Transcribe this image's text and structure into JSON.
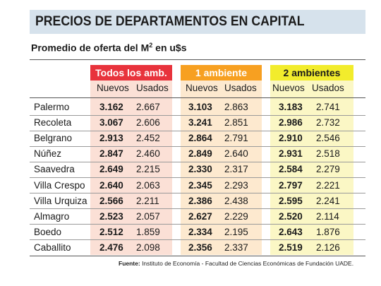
{
  "title": "PRECIOS DE DEPARTAMENTOS EN CAPITAL",
  "subtitle": {
    "text": "Promedio de oferta del M",
    "sup": "2",
    "suffix": " en u$s"
  },
  "groups": [
    {
      "label": "Todos los amb.",
      "color": "#e8333c"
    },
    {
      "label": "1 ambiente",
      "color": "#f7a021"
    },
    {
      "label": "2 ambientes",
      "color": "#f2ec2c"
    }
  ],
  "subheaders": {
    "nuevos": "Nuevos",
    "usados": "Usados"
  },
  "rows": [
    {
      "barrio": "Palermo",
      "values": [
        "3.162",
        "2.667",
        "3.103",
        "2.863",
        "3.183",
        "2.741"
      ]
    },
    {
      "barrio": "Recoleta",
      "values": [
        "3.067",
        "2.606",
        "3.241",
        "2.851",
        "2.986",
        "2.732"
      ]
    },
    {
      "barrio": "Belgrano",
      "values": [
        "2.913",
        "2.452",
        "2.864",
        "2.791",
        "2.910",
        "2.546"
      ]
    },
    {
      "barrio": "Núñez",
      "values": [
        "2.847",
        "2.460",
        "2.849",
        "2.640",
        "2.931",
        "2.518"
      ]
    },
    {
      "barrio": "Saavedra",
      "values": [
        "2.649",
        "2.215",
        "2.330",
        "2.317",
        "2.584",
        "2.279"
      ]
    },
    {
      "barrio": "Villa Crespo",
      "values": [
        "2.640",
        "2.063",
        "2.345",
        "2.293",
        "2.797",
        "2.221"
      ]
    },
    {
      "barrio": "Villa Urquiza",
      "values": [
        "2.566",
        "2.211",
        "2.386",
        "2.438",
        "2.595",
        "2.241"
      ]
    },
    {
      "barrio": "Almagro",
      "values": [
        "2.523",
        "2.057",
        "2.627",
        "2.229",
        "2.520",
        "2.114"
      ]
    },
    {
      "barrio": "Boedo",
      "values": [
        "2.512",
        "1.859",
        "2.334",
        "2.195",
        "2.643",
        "1.876"
      ]
    },
    {
      "barrio": "Caballito",
      "values": [
        "2.476",
        "2.098",
        "2.356",
        "2.337",
        "2.519",
        "2.126"
      ]
    }
  ],
  "source": {
    "label": "Fuente:",
    "text": " Instituto de Economía - Facultad de Ciencias Económicas de Fundación UADE."
  }
}
